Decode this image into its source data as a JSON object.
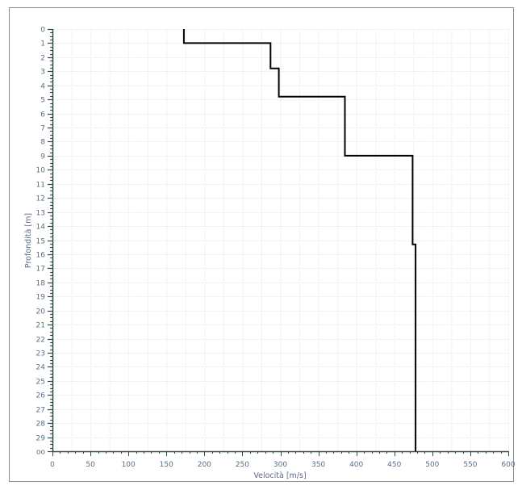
{
  "chart_data": {
    "type": "line",
    "xlabel": "Velocità [m/s]",
    "ylabel": "Profondità [m]",
    "xlim": [
      0,
      600
    ],
    "ylim": [
      0,
      30
    ],
    "y_inverted": true,
    "grid": true,
    "x_ticks": [
      "0",
      "50",
      "100",
      "150",
      "200",
      "250",
      "300",
      "350",
      "400",
      "450",
      "500",
      "550",
      "600"
    ],
    "y_ticks": [
      "0",
      "1",
      "2",
      "3",
      "4",
      "5",
      "6",
      "7",
      "8",
      "9",
      "10",
      "11",
      "12",
      "13",
      "14",
      "15",
      "16",
      "17",
      "18",
      "19",
      "20",
      "21",
      "22",
      "23",
      "24",
      "25",
      "26",
      "27",
      "28",
      "29",
      "oo"
    ],
    "series": [
      {
        "color": "#000000",
        "points": [
          {
            "velocity": 173,
            "depth": 0
          },
          {
            "velocity": 173,
            "depth": 1
          },
          {
            "velocity": 287,
            "depth": 1
          },
          {
            "velocity": 287,
            "depth": 2.8
          },
          {
            "velocity": 298,
            "depth": 2.8
          },
          {
            "velocity": 298,
            "depth": 4.8
          },
          {
            "velocity": 385,
            "depth": 4.8
          },
          {
            "velocity": 385,
            "depth": 9
          },
          {
            "velocity": 474,
            "depth": 9
          },
          {
            "velocity": 474,
            "depth": 15.3
          },
          {
            "velocity": 478,
            "depth": 15.3
          },
          {
            "velocity": 478,
            "depth": 30
          }
        ]
      }
    ]
  }
}
